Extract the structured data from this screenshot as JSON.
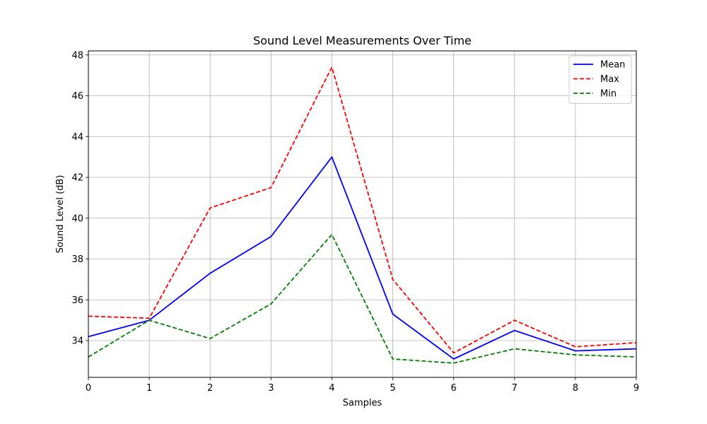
{
  "chart_data": {
    "type": "line",
    "title": "Sound Level Measurements Over Time",
    "xlabel": "Samples",
    "ylabel": "Sound Level (dB)",
    "x": [
      0,
      1,
      2,
      3,
      4,
      5,
      6,
      7,
      8,
      9
    ],
    "xlim": [
      0,
      9
    ],
    "ylim": [
      32.2,
      48.2
    ],
    "xticks": [
      "0",
      "1",
      "2",
      "3",
      "4",
      "5",
      "6",
      "7",
      "8",
      "9"
    ],
    "yticks": [
      "34",
      "36",
      "38",
      "40",
      "42",
      "44",
      "46",
      "48"
    ],
    "grid": true,
    "legend_position": "top-right",
    "series": [
      {
        "name": "Mean",
        "color": "#0000ff",
        "style": "solid",
        "values": [
          34.2,
          35.0,
          37.3,
          39.1,
          43.0,
          35.3,
          33.1,
          34.5,
          33.5,
          33.6
        ]
      },
      {
        "name": "Max",
        "color": "#ff0000",
        "style": "dashed",
        "values": [
          35.2,
          35.1,
          40.5,
          41.5,
          47.4,
          37.0,
          33.4,
          35.0,
          33.7,
          33.9
        ]
      },
      {
        "name": "Min",
        "color": "#008000",
        "style": "dashed",
        "values": [
          33.2,
          35.0,
          34.1,
          35.8,
          39.2,
          33.1,
          32.9,
          33.6,
          33.3,
          33.2
        ]
      }
    ]
  }
}
